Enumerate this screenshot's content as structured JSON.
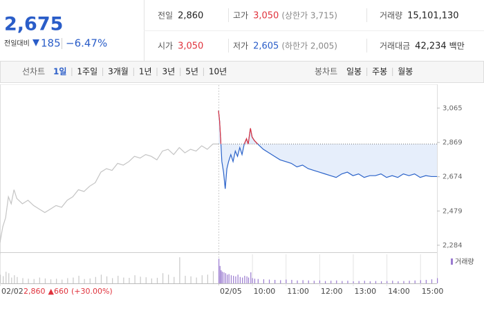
{
  "header": {
    "price": "2,675",
    "change_caption": "전일대비",
    "change": "185",
    "change_pct": "−6.47%",
    "stats": [
      {
        "label": "전일",
        "value": "2,860"
      },
      {
        "label": "고가",
        "value": "3,050",
        "note": "(상한가 3,715)"
      },
      {
        "label": "거래량",
        "value": "15,101,130"
      },
      {
        "label": "시가",
        "value": "3,050"
      },
      {
        "label": "저가",
        "value": "2,605",
        "note": "(하한가 2,005)"
      },
      {
        "label": "거래대금",
        "value": "42,234",
        "unit": "백만"
      }
    ]
  },
  "tabs": {
    "line_caption": "선차트",
    "line": [
      "1일",
      "1주일",
      "3개월",
      "1년",
      "3년",
      "5년",
      "10년"
    ],
    "candle_caption": "봉차트",
    "candle": [
      "일봉",
      "주봉",
      "월봉"
    ]
  },
  "chart_data": {
    "type": "line",
    "xlim": [
      0,
      780
    ],
    "ylim": [
      2244,
      3196
    ],
    "vlim": [
      0,
      1000
    ],
    "xticks": [
      {
        "value": 0,
        "label": "02/02"
      },
      {
        "value": 390,
        "label": "02/05"
      },
      {
        "value": 450,
        "label": "10:00"
      },
      {
        "value": 510,
        "label": "11:00"
      },
      {
        "value": 570,
        "label": "12:00"
      },
      {
        "value": 630,
        "label": "13:00"
      },
      {
        "value": 690,
        "label": "14:00"
      },
      {
        "value": 750,
        "label": "15:00"
      }
    ],
    "yticks": [
      {
        "value": 3065,
        "label": "3,065"
      },
      {
        "value": 2869,
        "label": "2,869"
      },
      {
        "value": 2674,
        "label": "2,674"
      },
      {
        "value": 2479,
        "label": "2,479"
      },
      {
        "value": 2284,
        "label": "2,284"
      }
    ],
    "reference": 2860,
    "up_color": "#e0323c",
    "prev_note": {
      "close": "2,860",
      "change": "▲660",
      "pct": "(+30.00%)"
    },
    "volume_legend": "거래량",
    "series": [
      {
        "color": "#c4c4c4",
        "volume_color": "#c8c8c8",
        "x": [
          0,
          5,
          10,
          15,
          20,
          25,
          30,
          40,
          50,
          60,
          70,
          80,
          90,
          100,
          110,
          120,
          130,
          140,
          150,
          160,
          170,
          180,
          190,
          200,
          210,
          220,
          230,
          240,
          250,
          260,
          270,
          280,
          290,
          300,
          310,
          320,
          330,
          340,
          350,
          360,
          370,
          380,
          390
        ],
        "values": [
          2300,
          2390,
          2440,
          2560,
          2520,
          2600,
          2550,
          2520,
          2540,
          2510,
          2490,
          2470,
          2490,
          2510,
          2500,
          2540,
          2560,
          2600,
          2590,
          2620,
          2640,
          2700,
          2720,
          2710,
          2750,
          2740,
          2760,
          2790,
          2780,
          2800,
          2790,
          2770,
          2820,
          2830,
          2800,
          2840,
          2810,
          2830,
          2820,
          2850,
          2830,
          2860,
          2860
        ],
        "volumes": [
          300,
          250,
          400,
          350,
          200,
          280,
          220,
          180,
          160,
          150,
          200,
          170,
          140,
          160,
          130,
          180,
          200,
          260,
          150,
          170,
          220,
          300,
          240,
          180,
          260,
          200,
          190,
          280,
          230,
          210,
          170,
          190,
          350,
          300,
          220,
          900,
          260,
          240,
          200,
          280,
          300,
          420,
          260
        ]
      },
      {
        "color": "#2a62c9",
        "volume_color": "#9a7ad0",
        "x": [
          390,
          392,
          394,
          396,
          399,
          402,
          405,
          408,
          412,
          416,
          420,
          424,
          428,
          432,
          436,
          440,
          443,
          447,
          450,
          454,
          460,
          470,
          480,
          490,
          500,
          510,
          520,
          530,
          540,
          550,
          560,
          570,
          580,
          590,
          600,
          610,
          620,
          630,
          640,
          650,
          660,
          670,
          680,
          690,
          700,
          710,
          720,
          730,
          740,
          750,
          760,
          770,
          780
        ],
        "values": [
          3050,
          2990,
          2880,
          2760,
          2700,
          2605,
          2720,
          2760,
          2800,
          2760,
          2820,
          2790,
          2840,
          2800,
          2860,
          2890,
          2860,
          2950,
          2900,
          2880,
          2860,
          2830,
          2810,
          2790,
          2770,
          2760,
          2750,
          2730,
          2740,
          2720,
          2710,
          2700,
          2690,
          2680,
          2670,
          2690,
          2700,
          2680,
          2690,
          2670,
          2680,
          2680,
          2690,
          2670,
          2680,
          2670,
          2690,
          2680,
          2690,
          2670,
          2680,
          2675,
          2675
        ],
        "volumes": [
          850,
          600,
          450,
          400,
          380,
          350,
          300,
          320,
          280,
          260,
          240,
          300,
          220,
          200,
          260,
          240,
          200,
          380,
          180,
          160,
          150,
          140,
          130,
          120,
          110,
          130,
          120,
          100,
          110,
          100,
          90,
          100,
          80,
          90,
          100,
          80,
          90,
          70,
          80,
          90,
          70,
          80,
          70,
          80,
          90,
          70,
          80,
          90,
          100,
          110,
          120,
          140,
          180
        ]
      }
    ]
  }
}
